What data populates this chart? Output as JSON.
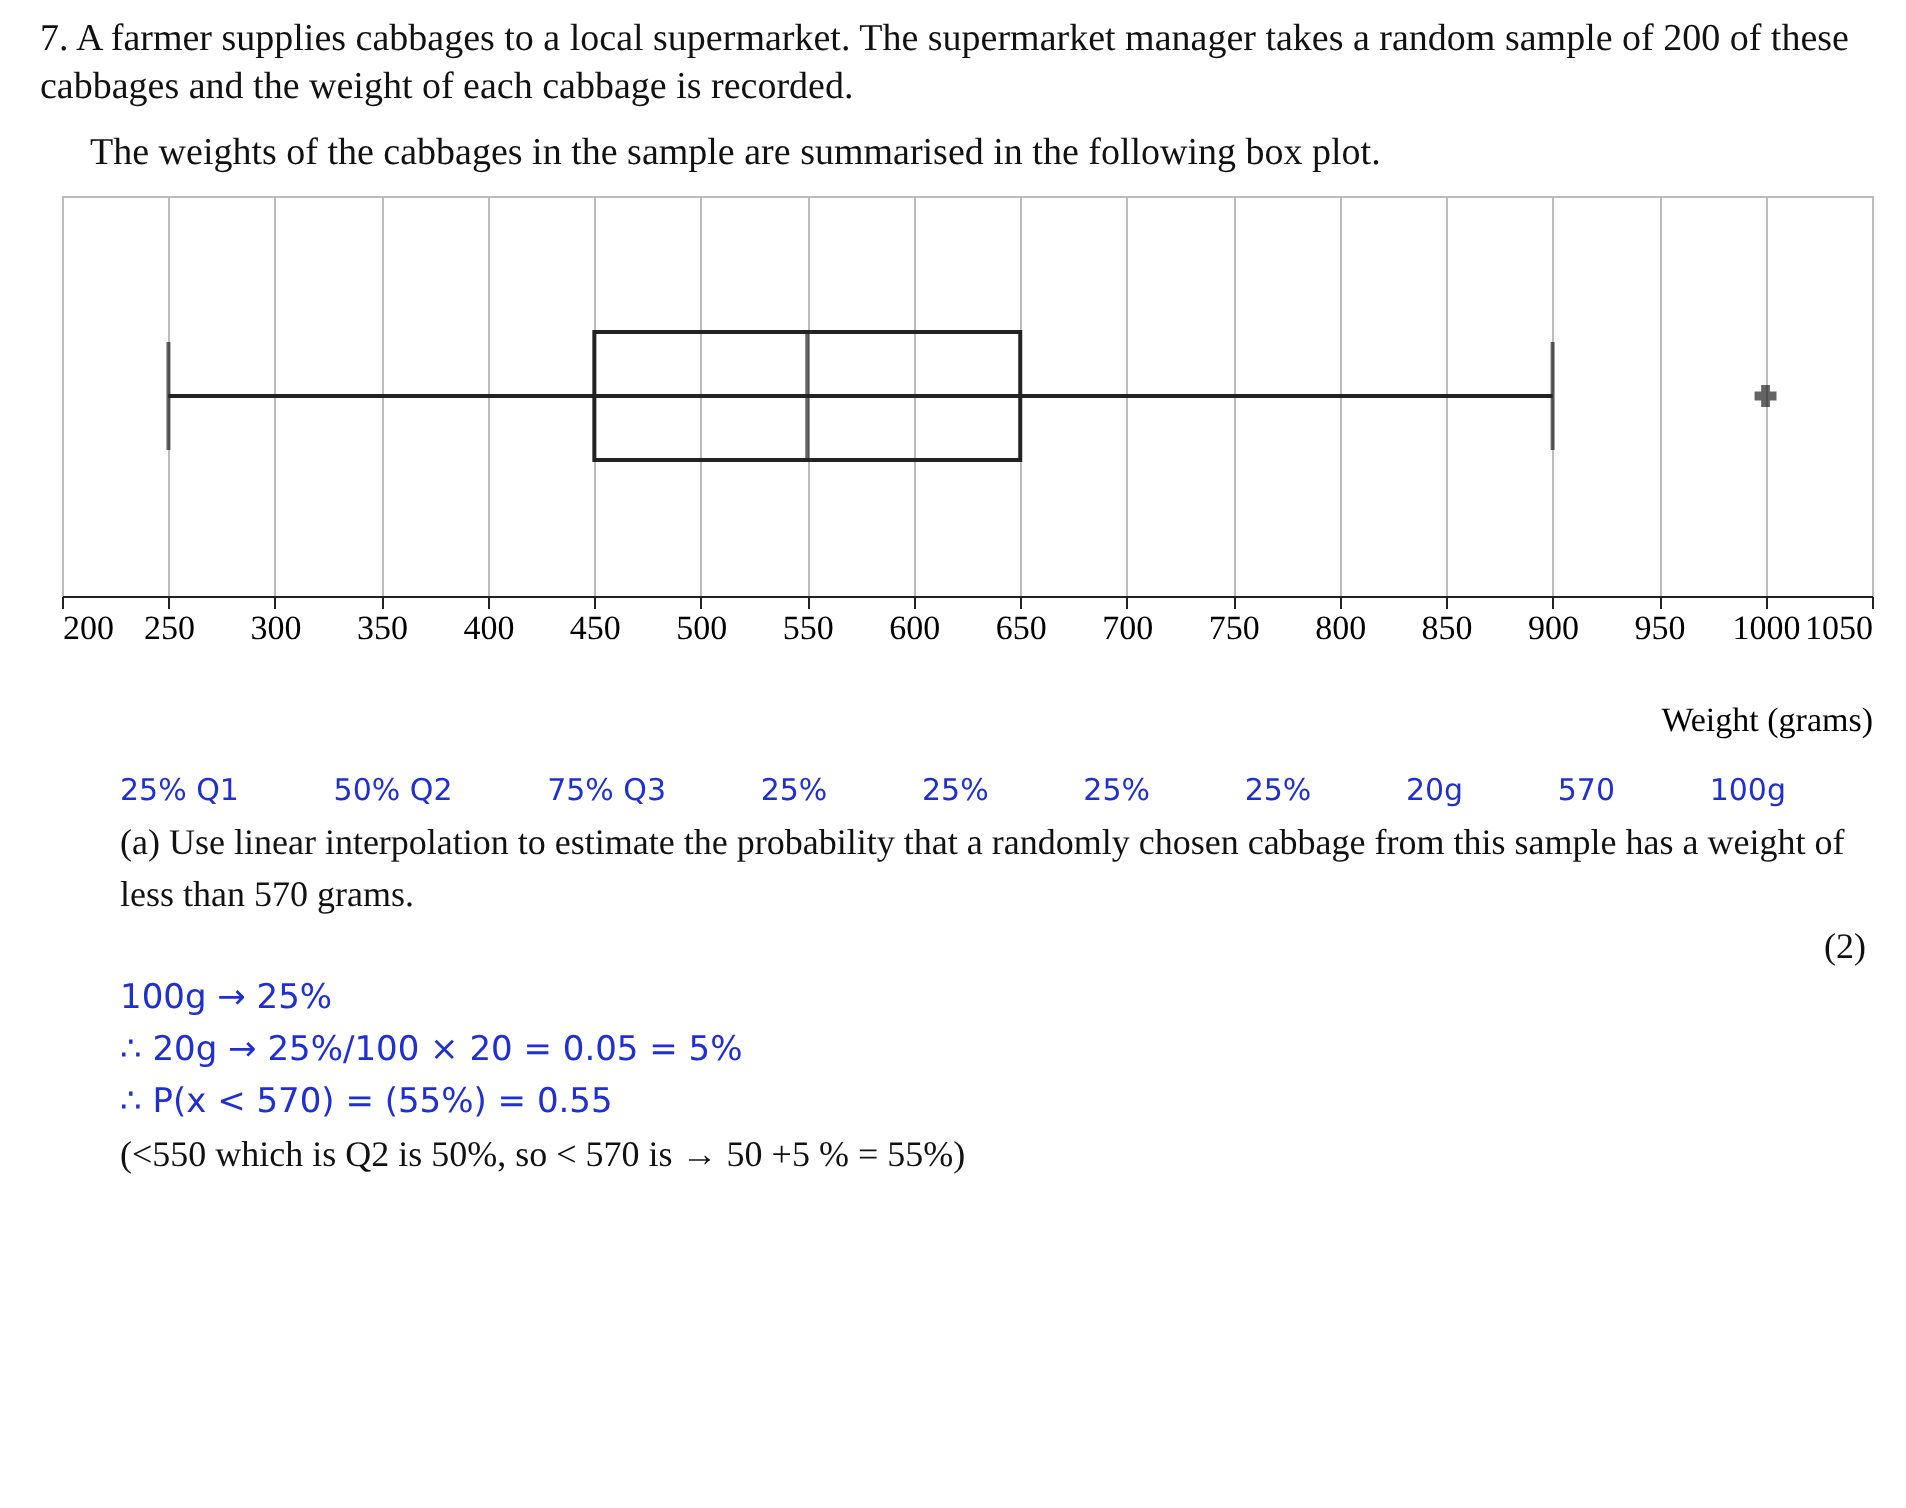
{
  "chart_data": {
    "type": "box",
    "title": "7. A farmer supplies cabbages to a local supermarket. The supermarket manager takes a random sample of 200 of these cabbages and the weight of each cabbage is recorded.",
    "subtitle": "The weights of the cabbages in the sample are summarised in the following box plot.",
    "xlabel": "Weight (grams)",
    "categories": [
      null
    ],
    "orientation": "horizontal",
    "boxes": [
      {
        "low": 250,
        "q1": 450,
        "median": 550,
        "q3": 650,
        "high": 900,
        "outliers": [
          1000
        ]
      }
    ],
    "xlim": [
      200,
      1050
    ],
    "xticks": [
      200,
      250,
      300,
      350,
      400,
      450,
      500,
      550,
      600,
      650,
      700,
      750,
      800,
      850,
      900,
      950,
      1000,
      1050
    ],
    "grid": true,
    "annotations": [
      "25% Q1",
      "50% Q2",
      "75% Q3",
      "25%",
      "25%",
      "25%",
      "25%",
      "20g",
      "570",
      "100g",
      "(a) Use linear interpolation to estimate the probability that a randomly chosen cabbage from this sample has a weight of less than 570 grams.",
      "(2)",
      "100g → 25%",
      "∴ 20g → 25%/100 × 20 = 0.05 = 5%",
      "∴ P(x < 570) = (55%) = 0.55",
      "(<550 which is Q2 is 50%, so < 570 is → 50 +5 % = 55%)"
    ]
  }
}
